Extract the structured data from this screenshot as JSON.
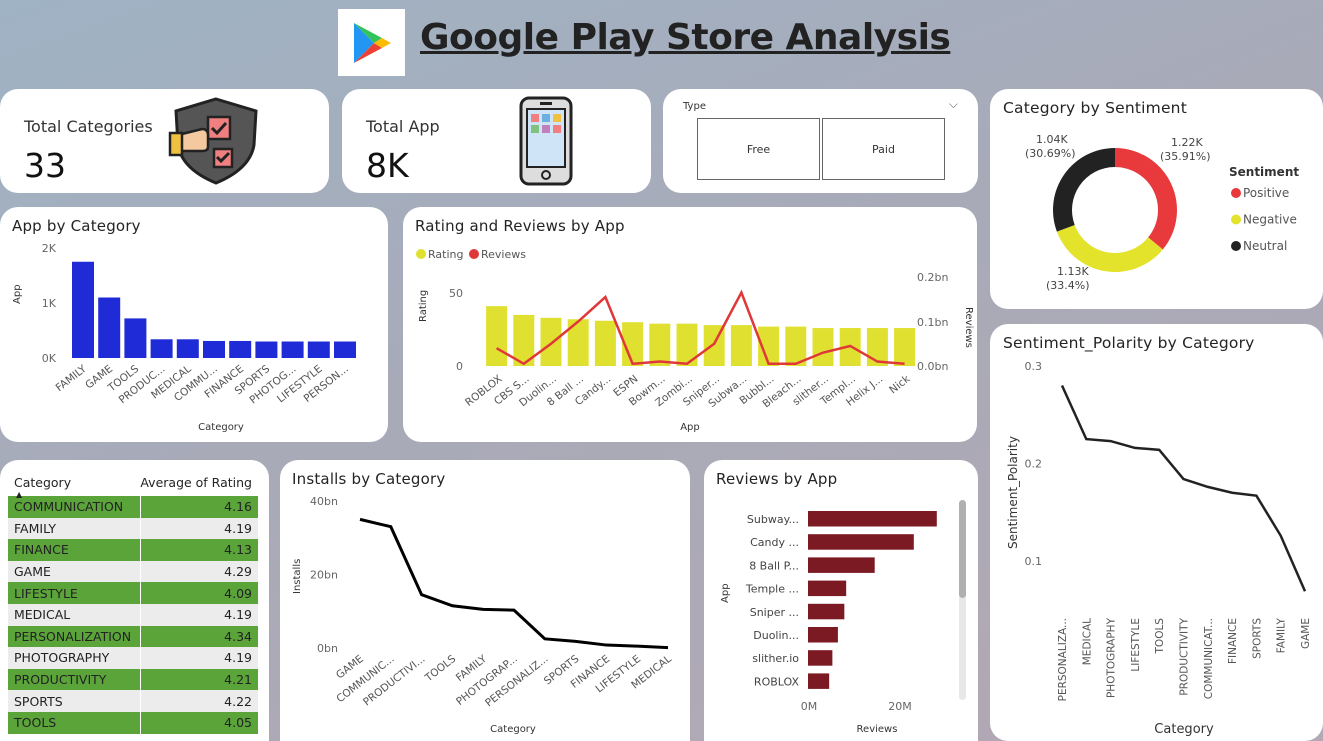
{
  "header": {
    "title": "Google Play Store Analysis"
  },
  "kpis": [
    {
      "label": "Total Categories",
      "value": "33",
      "icon": "checklist-shield-icon"
    },
    {
      "label": "Total App",
      "value": "8K",
      "icon": "smartphone-icon"
    }
  ],
  "slicer": {
    "label": "Type",
    "options": [
      "Free",
      "Paid"
    ]
  },
  "app_by_category": {
    "title": "App by Category",
    "xlabel": "Category",
    "ylabel": "App",
    "ticks": [
      "2K",
      "1K",
      "0K"
    ],
    "categories": [
      "FAMILY",
      "GAME",
      "TOOLS",
      "PRODUC...",
      "MEDICAL",
      "COMMU...",
      "FINANCE",
      "SPORTS",
      "PHOTOG...",
      "LIFESTYLE",
      "PERSON..."
    ],
    "values": [
      1750,
      1100,
      720,
      340,
      340,
      310,
      310,
      300,
      300,
      300,
      300
    ],
    "color": "#1f2bd6"
  },
  "rating_reviews": {
    "title": "Rating and Reviews by App",
    "legend": [
      "Rating",
      "Reviews"
    ],
    "xlabel": "App",
    "ylabel_left": "Rating",
    "ylabel_right": "Reviews",
    "left_ticks": [
      "50",
      "0"
    ],
    "right_ticks": [
      "0.2bn",
      "0.1bn",
      "0.0bn"
    ],
    "apps": [
      "ROBLOX",
      "CBS S...",
      "Duolin...",
      "8 Ball ...",
      "Candy...",
      "ESPN",
      "Bowm...",
      "Zombi...",
      "Sniper...",
      "Subwa...",
      "Bubbl...",
      "Bleach...",
      "slither...",
      "Templ...",
      "Helix J...",
      "Nick"
    ],
    "rating": [
      41,
      35,
      33,
      32,
      31,
      30,
      29,
      29,
      28,
      28,
      27,
      27,
      26,
      26,
      26,
      26
    ],
    "reviews_bn": [
      0.04,
      0.005,
      0.05,
      0.1,
      0.155,
      0.005,
      0.01,
      0.005,
      0.05,
      0.165,
      0.005,
      0.005,
      0.03,
      0.045,
      0.01,
      0.005
    ],
    "bar_color": "#e0e030",
    "line_color": "#e03838"
  },
  "sentiment": {
    "title": "Category by Sentiment",
    "legend_title": "Sentiment",
    "items": [
      {
        "name": "Positive",
        "value": 1220,
        "label": "1.22K",
        "pct": "(35.91%)",
        "color": "#e8393c"
      },
      {
        "name": "Negative",
        "value": 1130,
        "label": "1.13K",
        "pct": "(33.4%)",
        "color": "#e3e32c"
      },
      {
        "name": "Neutral",
        "value": 1040,
        "label": "1.04K",
        "pct": "(30.69%)",
        "color": "#222222"
      }
    ]
  },
  "polarity": {
    "title": "Sentiment_Polarity by Category",
    "xlabel": "Category",
    "ylabel": "Sentiment_Polarity",
    "ticks": [
      "0.3",
      "0.2",
      "0.1"
    ],
    "categories": [
      "PERSONALIZA...",
      "MEDICAL",
      "PHOTOGRAPHY",
      "LIFESTYLE",
      "TOOLS",
      "PRODUCTIVITY",
      "COMMUNICAT...",
      "FINANCE",
      "SPORTS",
      "FAMILY",
      "GAME"
    ],
    "values": [
      0.28,
      0.225,
      0.223,
      0.216,
      0.214,
      0.184,
      0.176,
      0.17,
      0.167,
      0.126,
      0.069
    ]
  },
  "table": {
    "col1": "Category",
    "col2": "Average of Rating",
    "rows": [
      {
        "category": "COMMUNICATION",
        "rating": "4.16"
      },
      {
        "category": "FAMILY",
        "rating": "4.19"
      },
      {
        "category": "FINANCE",
        "rating": "4.13"
      },
      {
        "category": "GAME",
        "rating": "4.29"
      },
      {
        "category": "LIFESTYLE",
        "rating": "4.09"
      },
      {
        "category": "MEDICAL",
        "rating": "4.19"
      },
      {
        "category": "PERSONALIZATION",
        "rating": "4.34"
      },
      {
        "category": "PHOTOGRAPHY",
        "rating": "4.19"
      },
      {
        "category": "PRODUCTIVITY",
        "rating": "4.21"
      },
      {
        "category": "SPORTS",
        "rating": "4.22"
      },
      {
        "category": "TOOLS",
        "rating": "4.05"
      }
    ]
  },
  "installs": {
    "title": "Installs by Category",
    "xlabel": "Category",
    "ylabel": "Installs",
    "ticks": [
      "40bn",
      "20bn",
      "0bn"
    ],
    "categories": [
      "GAME",
      "COMMUNIC...",
      "PRODUCTIVI...",
      "TOOLS",
      "FAMILY",
      "PHOTOGRAP...",
      "PERSONALIZ...",
      "SPORTS",
      "FINANCE",
      "LIFESTYLE",
      "MEDICAL"
    ],
    "values_bn": [
      35,
      33,
      14.5,
      11.5,
      10.5,
      10.3,
      2.5,
      1.8,
      0.8,
      0.5,
      0.1
    ]
  },
  "reviews_by_app": {
    "title": "Reviews by App",
    "xlabel": "Reviews",
    "ylabel": "App",
    "ticks": [
      "0M",
      "20M"
    ],
    "apps": [
      "Subway...",
      "Candy ...",
      "8 Ball P...",
      "Temple ...",
      "Sniper ...",
      "Duolin...",
      "slither.io",
      "ROBLOX"
    ],
    "values_m": [
      28,
      23,
      14.5,
      8.3,
      7.9,
      6.5,
      5.3,
      4.6
    ],
    "color": "#7b1a22"
  }
}
